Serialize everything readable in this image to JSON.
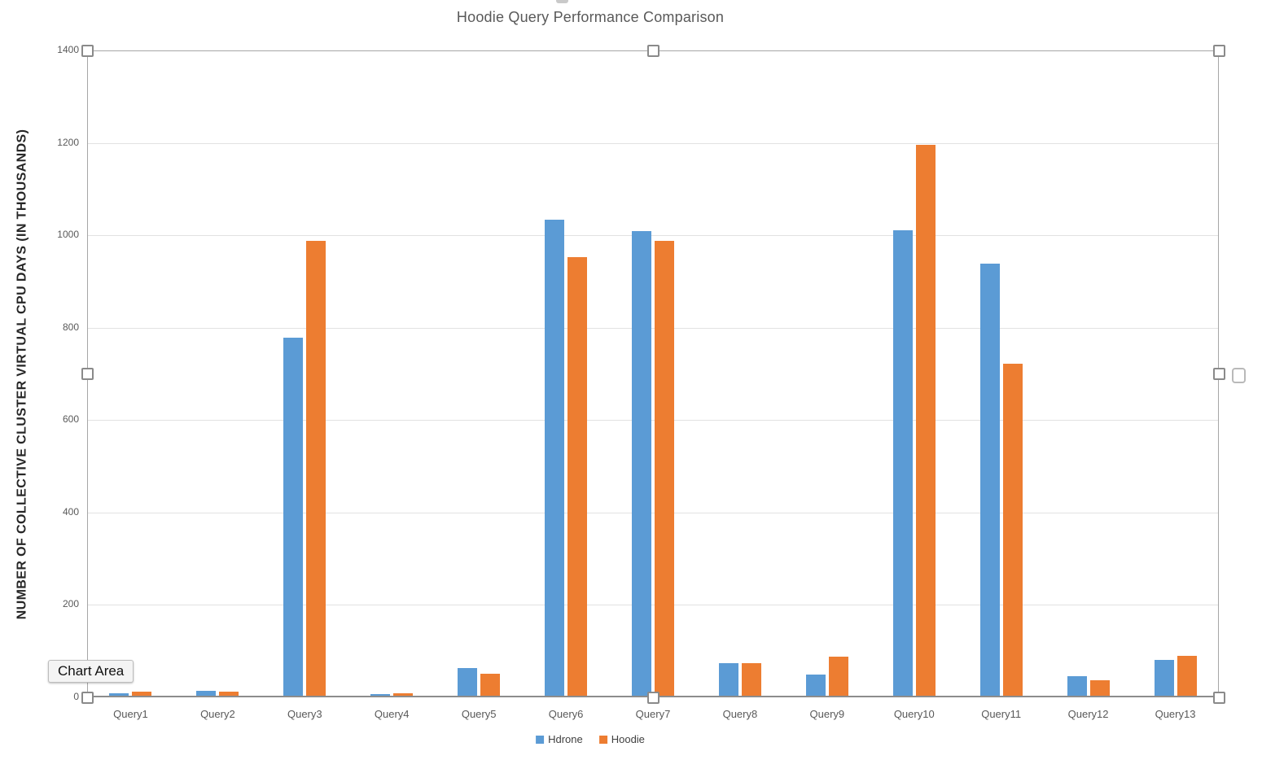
{
  "chart": {
    "title": "Hoodie Query Performance Comparison",
    "tooltip": "Chart Area"
  },
  "chart_data": {
    "type": "bar",
    "title": "Hoodie Query Performance Comparison",
    "xlabel": "",
    "ylabel": "NUMBER OF COLLECTIVE CLUSTER VIRTUAL CPU DAYS (IN THOUSANDS)",
    "ylim": [
      0,
      1400
    ],
    "ytick_interval": 200,
    "yticks": [
      0,
      200,
      400,
      600,
      800,
      1000,
      1200,
      1400
    ],
    "grid": true,
    "legend_position": "bottom",
    "categories": [
      "Query1",
      "Query2",
      "Query3",
      "Query4",
      "Query5",
      "Query6",
      "Query7",
      "Query8",
      "Query9",
      "Query10",
      "Query11",
      "Query12",
      "Query13"
    ],
    "series": [
      {
        "name": "Hdrone",
        "color": "#5B9BD5",
        "values": [
          5,
          10,
          775,
          4,
          60,
          1030,
          1005,
          70,
          46,
          1008,
          935,
          42,
          78
        ]
      },
      {
        "name": "Hoodie",
        "color": "#ED7D31",
        "values": [
          8,
          9,
          985,
          5,
          48,
          950,
          985,
          70,
          85,
          1192,
          718,
          33,
          87
        ]
      }
    ]
  },
  "colors": {
    "hdrone": "#5B9BD5",
    "hoodie": "#ED7D31",
    "gridline": "#E2E2E2",
    "axis_line": "#8C8C8C",
    "selection_border": "#A6A6A6",
    "title_text": "#595959",
    "tick_text": "#595959"
  }
}
